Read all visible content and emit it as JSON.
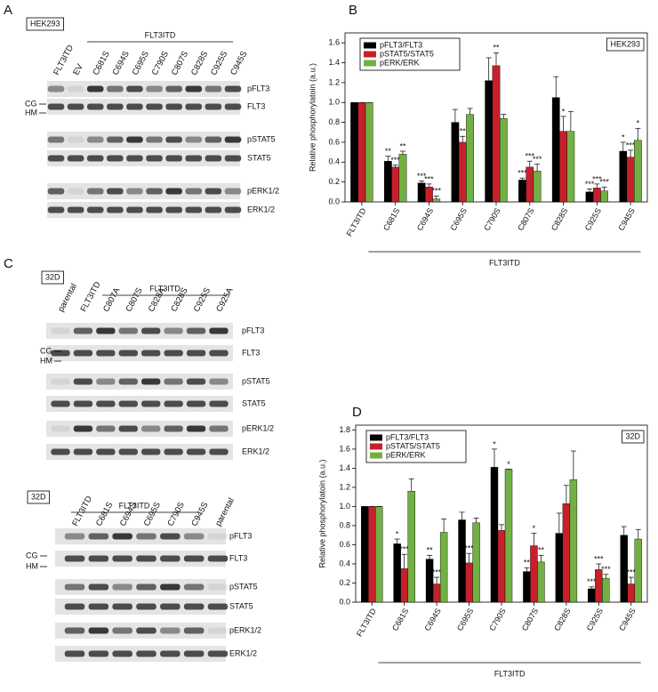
{
  "figure": {
    "letters": [
      "A",
      "B",
      "C",
      "D"
    ]
  },
  "blots": [
    {
      "cell_line": "HEK293",
      "group_label": "FLT3ITD",
      "lanes": [
        "FLT3ITD",
        "EV",
        "C681S",
        "C694S",
        "C695S",
        "C790S",
        "C807S",
        "C828S",
        "C925S",
        "C945S"
      ],
      "rows": [
        "pFLT3",
        "FLT3",
        "pSTAT5",
        "STAT5",
        "pERK1/2",
        "ERK1/2"
      ],
      "markers": [
        "CG",
        "HM"
      ]
    },
    {
      "cell_line": "32D",
      "group_label": "FLT3ITD",
      "lanes": [
        "parental",
        "FLT3ITD",
        "C807A",
        "C807S",
        "C828A",
        "C828S",
        "C925S",
        "C925A"
      ],
      "rows": [
        "pFLT3",
        "FLT3",
        "pSTAT5",
        "STAT5",
        "pERK1/2",
        "ERK1/2"
      ],
      "markers": [
        "CG",
        "HM"
      ]
    },
    {
      "cell_line": "32D",
      "group_label": "FLT3ITD",
      "lanes": [
        "FLT3ITD",
        "C681S",
        "C694S",
        "C695S",
        "C790S",
        "C945S",
        "parental"
      ],
      "rows": [
        "pFLT3",
        "FLT3",
        "pSTAT5",
        "STAT5",
        "pERK1/2",
        "ERK1/2"
      ],
      "markers": [
        "CG",
        "HM"
      ]
    }
  ],
  "chart_data": [
    {
      "type": "bar",
      "annotation": "HEK293",
      "ylabel": "Relative phosphorylatoin (a.u.)",
      "xlabel": "FLT3ITD",
      "categories": [
        "FLT3ITD",
        "C681S",
        "C694S",
        "C695S",
        "C790S",
        "C807S",
        "C828S",
        "C925S",
        "C945S"
      ],
      "ylim": [
        0,
        1.7
      ],
      "yticks": [
        {
          "value": 0,
          "label": "0.0"
        },
        0.2,
        0.4,
        0.6,
        0.8,
        {
          "value": 1,
          "label": "1.0"
        },
        1.2,
        1.4,
        1.6
      ],
      "legend": "upper left",
      "series": [
        {
          "name": "pFLT3/FLT3",
          "color": "#000000",
          "values": [
            1.0,
            0.41,
            0.19,
            0.8,
            1.22,
            0.22,
            1.05,
            0.1,
            0.51
          ],
          "errors": [
            0,
            0.05,
            0.02,
            0.13,
            0.23,
            0.02,
            0.21,
            0.03,
            0.09
          ],
          "significance": [
            null,
            "**",
            "***",
            null,
            null,
            "***",
            null,
            "***",
            "*"
          ]
        },
        {
          "name": "pSTAT5/STAT5",
          "color": "#c8202a",
          "values": [
            1.0,
            0.35,
            0.15,
            0.6,
            1.37,
            0.35,
            0.71,
            0.14,
            0.45
          ],
          "errors": [
            0,
            0.02,
            0.03,
            0.06,
            0.13,
            0.06,
            0.15,
            0.04,
            0.07
          ],
          "significance": [
            null,
            "***",
            "***",
            "**",
            "**",
            "***",
            "*",
            "***",
            "***"
          ]
        },
        {
          "name": "pERK/ERK",
          "color": "#72b043",
          "values": [
            1.0,
            0.48,
            0.03,
            0.88,
            0.84,
            0.31,
            0.71,
            0.11,
            0.62
          ],
          "errors": [
            0,
            0.03,
            0.03,
            0.06,
            0.04,
            0.07,
            0.2,
            0.04,
            0.12
          ],
          "significance": [
            null,
            "**",
            "***",
            null,
            null,
            "***",
            null,
            "***",
            "*"
          ]
        }
      ]
    },
    {
      "type": "bar",
      "annotation": "32D",
      "ylabel": "Relative phosphorylatoin (a.u.)",
      "xlabel": "FLT3ITD",
      "categories": [
        "FLT3ITD",
        "C681S",
        "C694S",
        "C695S",
        "C790S",
        "C807S",
        "C828S",
        "C925S",
        "C945S"
      ],
      "ylim": [
        0,
        1.85
      ],
      "yticks": [
        {
          "value": 0,
          "label": "0.0"
        },
        0.2,
        0.4,
        0.6,
        0.8,
        {
          "value": 1,
          "label": "1.0"
        },
        1.2,
        1.4,
        1.6,
        1.8
      ],
      "legend": "upper left",
      "series": [
        {
          "name": "pFLT3/FLT3",
          "color": "#000000",
          "values": [
            1.0,
            0.61,
            0.45,
            0.86,
            1.41,
            0.32,
            0.72,
            0.14,
            0.7
          ],
          "errors": [
            0,
            0.05,
            0.04,
            0.08,
            0.19,
            0.04,
            0.21,
            0.02,
            0.09
          ],
          "significance": [
            null,
            "*",
            "**",
            null,
            "*",
            "**",
            null,
            "***",
            null
          ]
        },
        {
          "name": "pSTAT5/STAT5",
          "color": "#c8202a",
          "values": [
            1.0,
            0.35,
            0.19,
            0.41,
            0.75,
            0.59,
            1.03,
            0.34,
            0.19
          ],
          "errors": [
            0,
            0.15,
            0.07,
            0.1,
            0.06,
            0.13,
            0.19,
            0.06,
            0.07
          ],
          "significance": [
            null,
            "***",
            "***",
            "***",
            null,
            "*",
            null,
            "***",
            "***"
          ]
        },
        {
          "name": "pERK/ERK",
          "color": "#72b043",
          "values": [
            1.0,
            1.16,
            0.73,
            0.83,
            1.39,
            0.42,
            1.28,
            0.25,
            0.66
          ],
          "errors": [
            0,
            0.13,
            0.14,
            0.05,
            0,
            0.07,
            0.3,
            0.04,
            0.1
          ],
          "significance": [
            null,
            null,
            null,
            null,
            "*",
            "**",
            null,
            "***",
            null
          ]
        }
      ]
    }
  ]
}
